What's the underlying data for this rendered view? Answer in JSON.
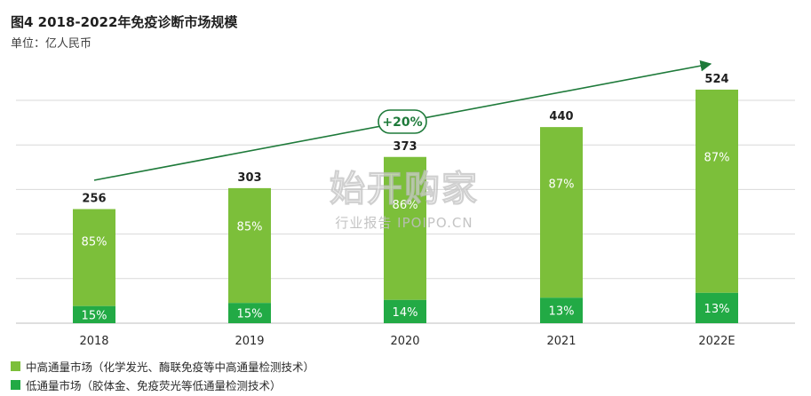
{
  "colors": {
    "high": "#7cbf3a",
    "low": "#22aa45",
    "arrow": "#1e7a3a",
    "grid": "#d9d9d9",
    "bubble_text": "#1e7a3a"
  },
  "chart_data": {
    "type": "bar",
    "stacked": true,
    "title": "图4 2018-2022年免疫诊断市场规模",
    "subtitle": "单位：亿人民币",
    "categories": [
      "2018",
      "2019",
      "2020",
      "2021",
      "2022E"
    ],
    "totals": [
      256,
      303,
      373,
      440,
      524
    ],
    "total_labels": [
      "256",
      "303",
      "373",
      "440",
      "524"
    ],
    "series": [
      {
        "name": "低通量市场（胶体金、免疫荧光等低通量检测技术）",
        "share_labels": [
          "15%",
          "15%",
          "14%",
          "13%",
          "13%"
        ],
        "shares": [
          0.15,
          0.15,
          0.14,
          0.13,
          0.13
        ],
        "color": "#22aa45"
      },
      {
        "name": "中高通量市场（化学发光、酶联免疫等中高通量检测技术）",
        "share_labels": [
          "85%",
          "85%",
          "86%",
          "87%",
          "87%"
        ],
        "shares": [
          0.85,
          0.85,
          0.86,
          0.87,
          0.87
        ],
        "color": "#7cbf3a"
      }
    ],
    "ylim": [
      0,
      560
    ],
    "grid": true,
    "legend": "bottom-left",
    "annotation": "+20%"
  },
  "watermark": {
    "logo": "始开购家",
    "tag": "行业报告 IPOIPO.CN"
  }
}
